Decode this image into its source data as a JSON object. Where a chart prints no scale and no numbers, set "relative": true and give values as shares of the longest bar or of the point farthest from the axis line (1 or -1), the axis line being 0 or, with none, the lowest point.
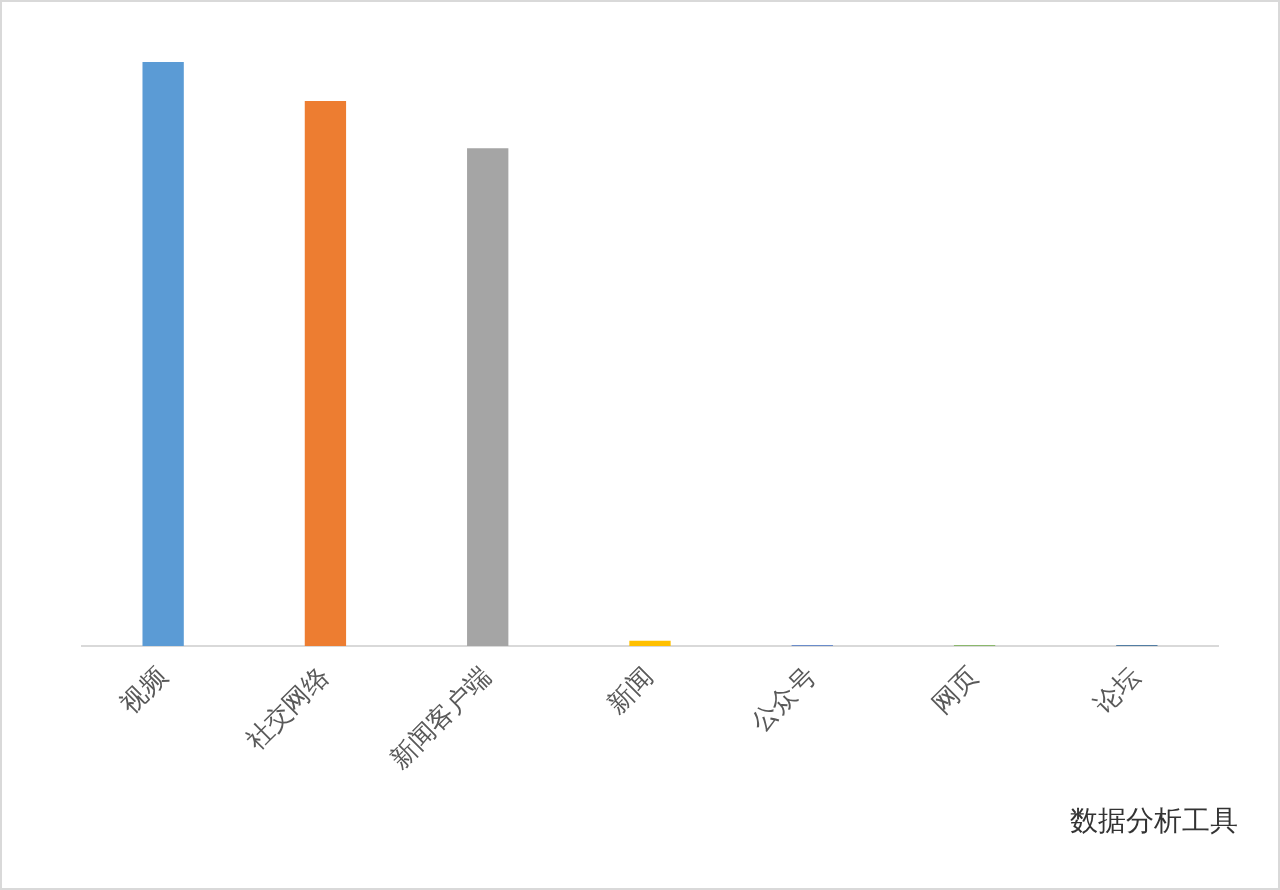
{
  "chart_data": {
    "type": "bar",
    "relative": true,
    "categories": [
      "视频",
      "社交网络",
      "新闻客户端",
      "新闻",
      "公众号",
      "网页",
      "论坛"
    ],
    "values": [
      1,
      0.932,
      0.851,
      0.008,
      0,
      0,
      0
    ],
    "colors": [
      "#5b9bd5",
      "#ed7d31",
      "#a5a5a5",
      "#ffc000",
      "#4472c4",
      "#70ad47",
      "#255e91"
    ],
    "grid": false,
    "legend": false,
    "annotations": [
      "数据分析工具"
    ]
  }
}
